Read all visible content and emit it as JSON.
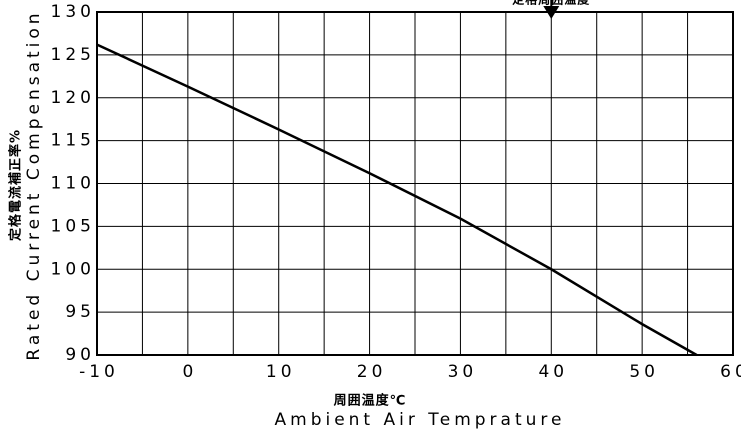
{
  "chart_data": {
    "type": "line",
    "annotation": "定格周囲温度",
    "annotation_x": 40,
    "xlabel": [
      "周囲温度℃",
      "Ambient Air Temprature"
    ],
    "ylabel": [
      "定格電流補正率%",
      "Rated Current Compensation"
    ],
    "x": [
      -10,
      0,
      10,
      20,
      30,
      40,
      50,
      56
    ],
    "series": [
      {
        "color": "#000000",
        "values": [
          126.2,
          121.3,
          116.3,
          111.2,
          105.9,
          100,
          93.6,
          90
        ]
      }
    ],
    "xlim": [
      -10,
      60
    ],
    "xticks": [
      -10,
      0,
      10,
      20,
      30,
      40,
      50,
      60
    ],
    "xgrid": [
      -10,
      -5,
      0,
      5,
      10,
      15,
      20,
      25,
      30,
      35,
      40,
      45,
      50,
      55,
      60
    ],
    "ylim": [
      90,
      130
    ],
    "yticks": [
      90,
      95,
      100,
      105,
      110,
      115,
      120,
      125,
      130
    ],
    "grid": true
  }
}
